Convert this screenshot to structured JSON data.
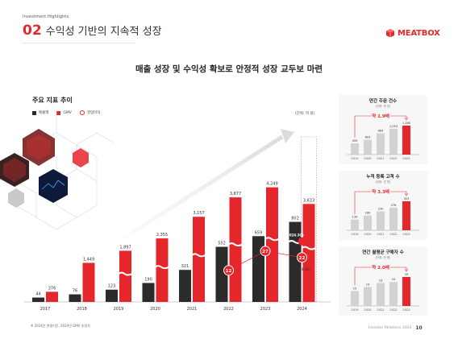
{
  "header": {
    "eyebrow": "Investment Highlights",
    "section_num": "02",
    "section_title": "수익성 기반의 지속적 성장",
    "brand": "MEATBOX"
  },
  "headline": "매출 성장 및 수익성 확보로 안정적 성장 교두보 마련",
  "main_chart_title": "주요 지표 추이",
  "unit_label": "(단위: 억 원)",
  "footnote": "※ 2024년 연결기준, 2024년 GMV 추정치",
  "page": {
    "left": "Investor Relations 2024",
    "num": "10"
  },
  "colors": {
    "red": "#e5262b",
    "dark": "#2b2b2b",
    "grey": "#cfcfcf"
  },
  "chart_data": [
    {
      "type": "bar",
      "title": "주요 지표 추이",
      "categories": [
        "2017",
        "2018",
        "2019",
        "2020",
        "2021",
        "2022",
        "2023",
        "2024"
      ],
      "series": [
        {
          "name": "매출액",
          "values": [
            44,
            76,
            123,
            190,
            321,
            552,
            659,
            802
          ],
          "labels": [
            "44",
            "76",
            "123",
            "190",
            "321",
            "552",
            "659",
            "802"
          ]
        },
        {
          "name": "GMV",
          "values": [
            376,
            1449,
            1897,
            2355,
            3157,
            3877,
            4249,
            3633
          ],
          "labels": [
            "376",
            "1,449",
            "1,897",
            "2,355",
            "3,157",
            "3,877",
            "4,249",
            "3,633"
          ]
        },
        {
          "name": "영업이익",
          "values": [
            null,
            null,
            null,
            null,
            null,
            12,
            27,
            22
          ]
        }
      ],
      "annotations": [
        "(2024.3Q)",
        "(2024.3Q)"
      ]
    },
    {
      "type": "bar",
      "title": "연간 주문 건수",
      "subtitle": "(단위: 만 건)",
      "categories": [
        "2019",
        "2020",
        "2021",
        "2022",
        "2023"
      ],
      "values": [
        459,
        603,
        864,
        1054,
        1180
      ],
      "labels": [
        "459",
        "603",
        "864",
        "1,054",
        "1,180"
      ],
      "callout": "약 1.9배"
    },
    {
      "type": "bar",
      "title": "누적 등록 고객 수",
      "subtitle": "(단위: 천 명)",
      "categories": [
        "2019",
        "2020",
        "2021",
        "2022",
        "2023"
      ],
      "values": [
        130,
        180,
        230,
        276,
        353
      ],
      "callout": "약 3.3배"
    },
    {
      "type": "bar",
      "title": "연간 월평균 구매자 수",
      "subtitle": "(단위: 천 명)",
      "categories": [
        "2019",
        "2020",
        "2021",
        "2022",
        "2023"
      ],
      "values": [
        15,
        19,
        23,
        24,
        29
      ],
      "callout": "약 2.0배"
    }
  ]
}
